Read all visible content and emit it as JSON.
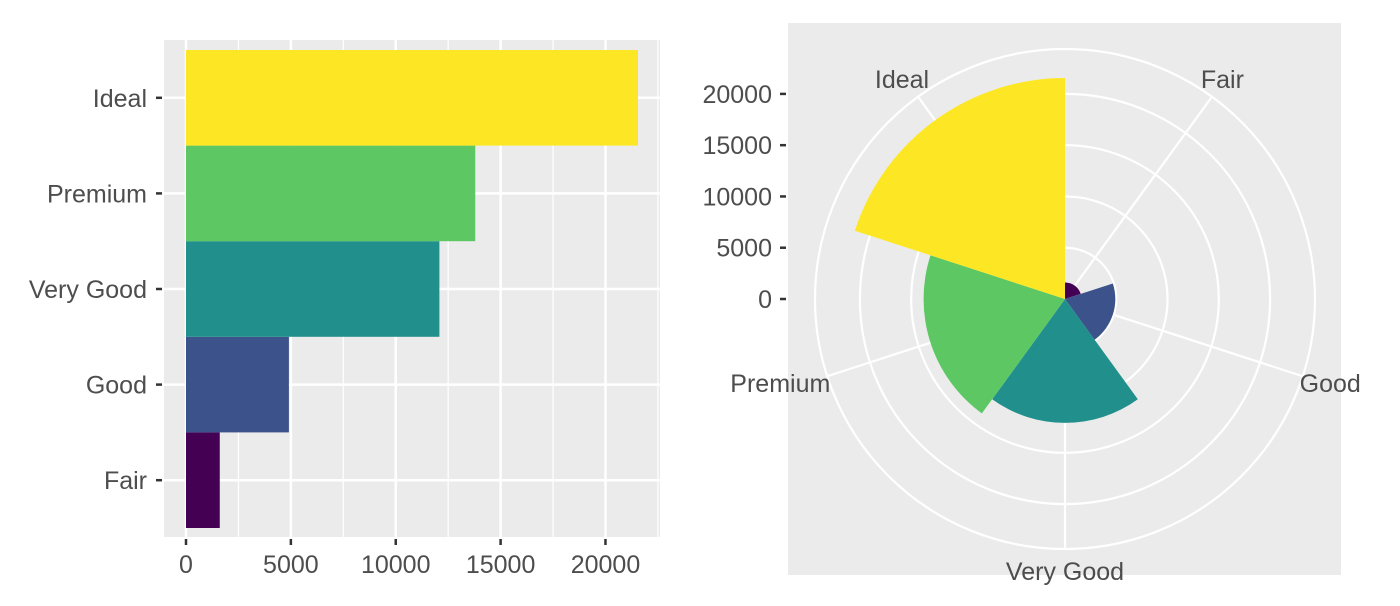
{
  "chart_data": [
    {
      "type": "bar",
      "orientation": "horizontal",
      "categories": [
        "Fair",
        "Good",
        "Very Good",
        "Premium",
        "Ideal"
      ],
      "values": [
        1610,
        4906,
        12082,
        13791,
        21551
      ],
      "colors": [
        "#440154",
        "#3b528b",
        "#21908c",
        "#5dc863",
        "#fde725"
      ],
      "title": "",
      "xlabel": "",
      "ylabel": "",
      "xlim": [
        0,
        22628
      ],
      "x_ticks": [
        0,
        5000,
        10000,
        15000,
        20000
      ],
      "x_tick_labels": [
        "0",
        "5000",
        "10000",
        "15000",
        "20000"
      ],
      "grid": true,
      "background": "#ebebeb"
    },
    {
      "type": "bar",
      "coordinate_system": "polar",
      "categories": [
        "Fair",
        "Good",
        "Very Good",
        "Premium",
        "Ideal"
      ],
      "values": [
        1610,
        4906,
        12082,
        13791,
        21551
      ],
      "colors": [
        "#440154",
        "#3b528b",
        "#21908c",
        "#5dc863",
        "#fde725"
      ],
      "title": "",
      "xlabel": "",
      "ylabel": "",
      "rlim": [
        0,
        21551
      ],
      "r_ticks": [
        0,
        5000,
        10000,
        15000,
        20000
      ],
      "r_tick_labels": [
        "0",
        "5000",
        "10000",
        "15000",
        "20000"
      ],
      "grid": true,
      "background": "#ebebeb"
    }
  ]
}
